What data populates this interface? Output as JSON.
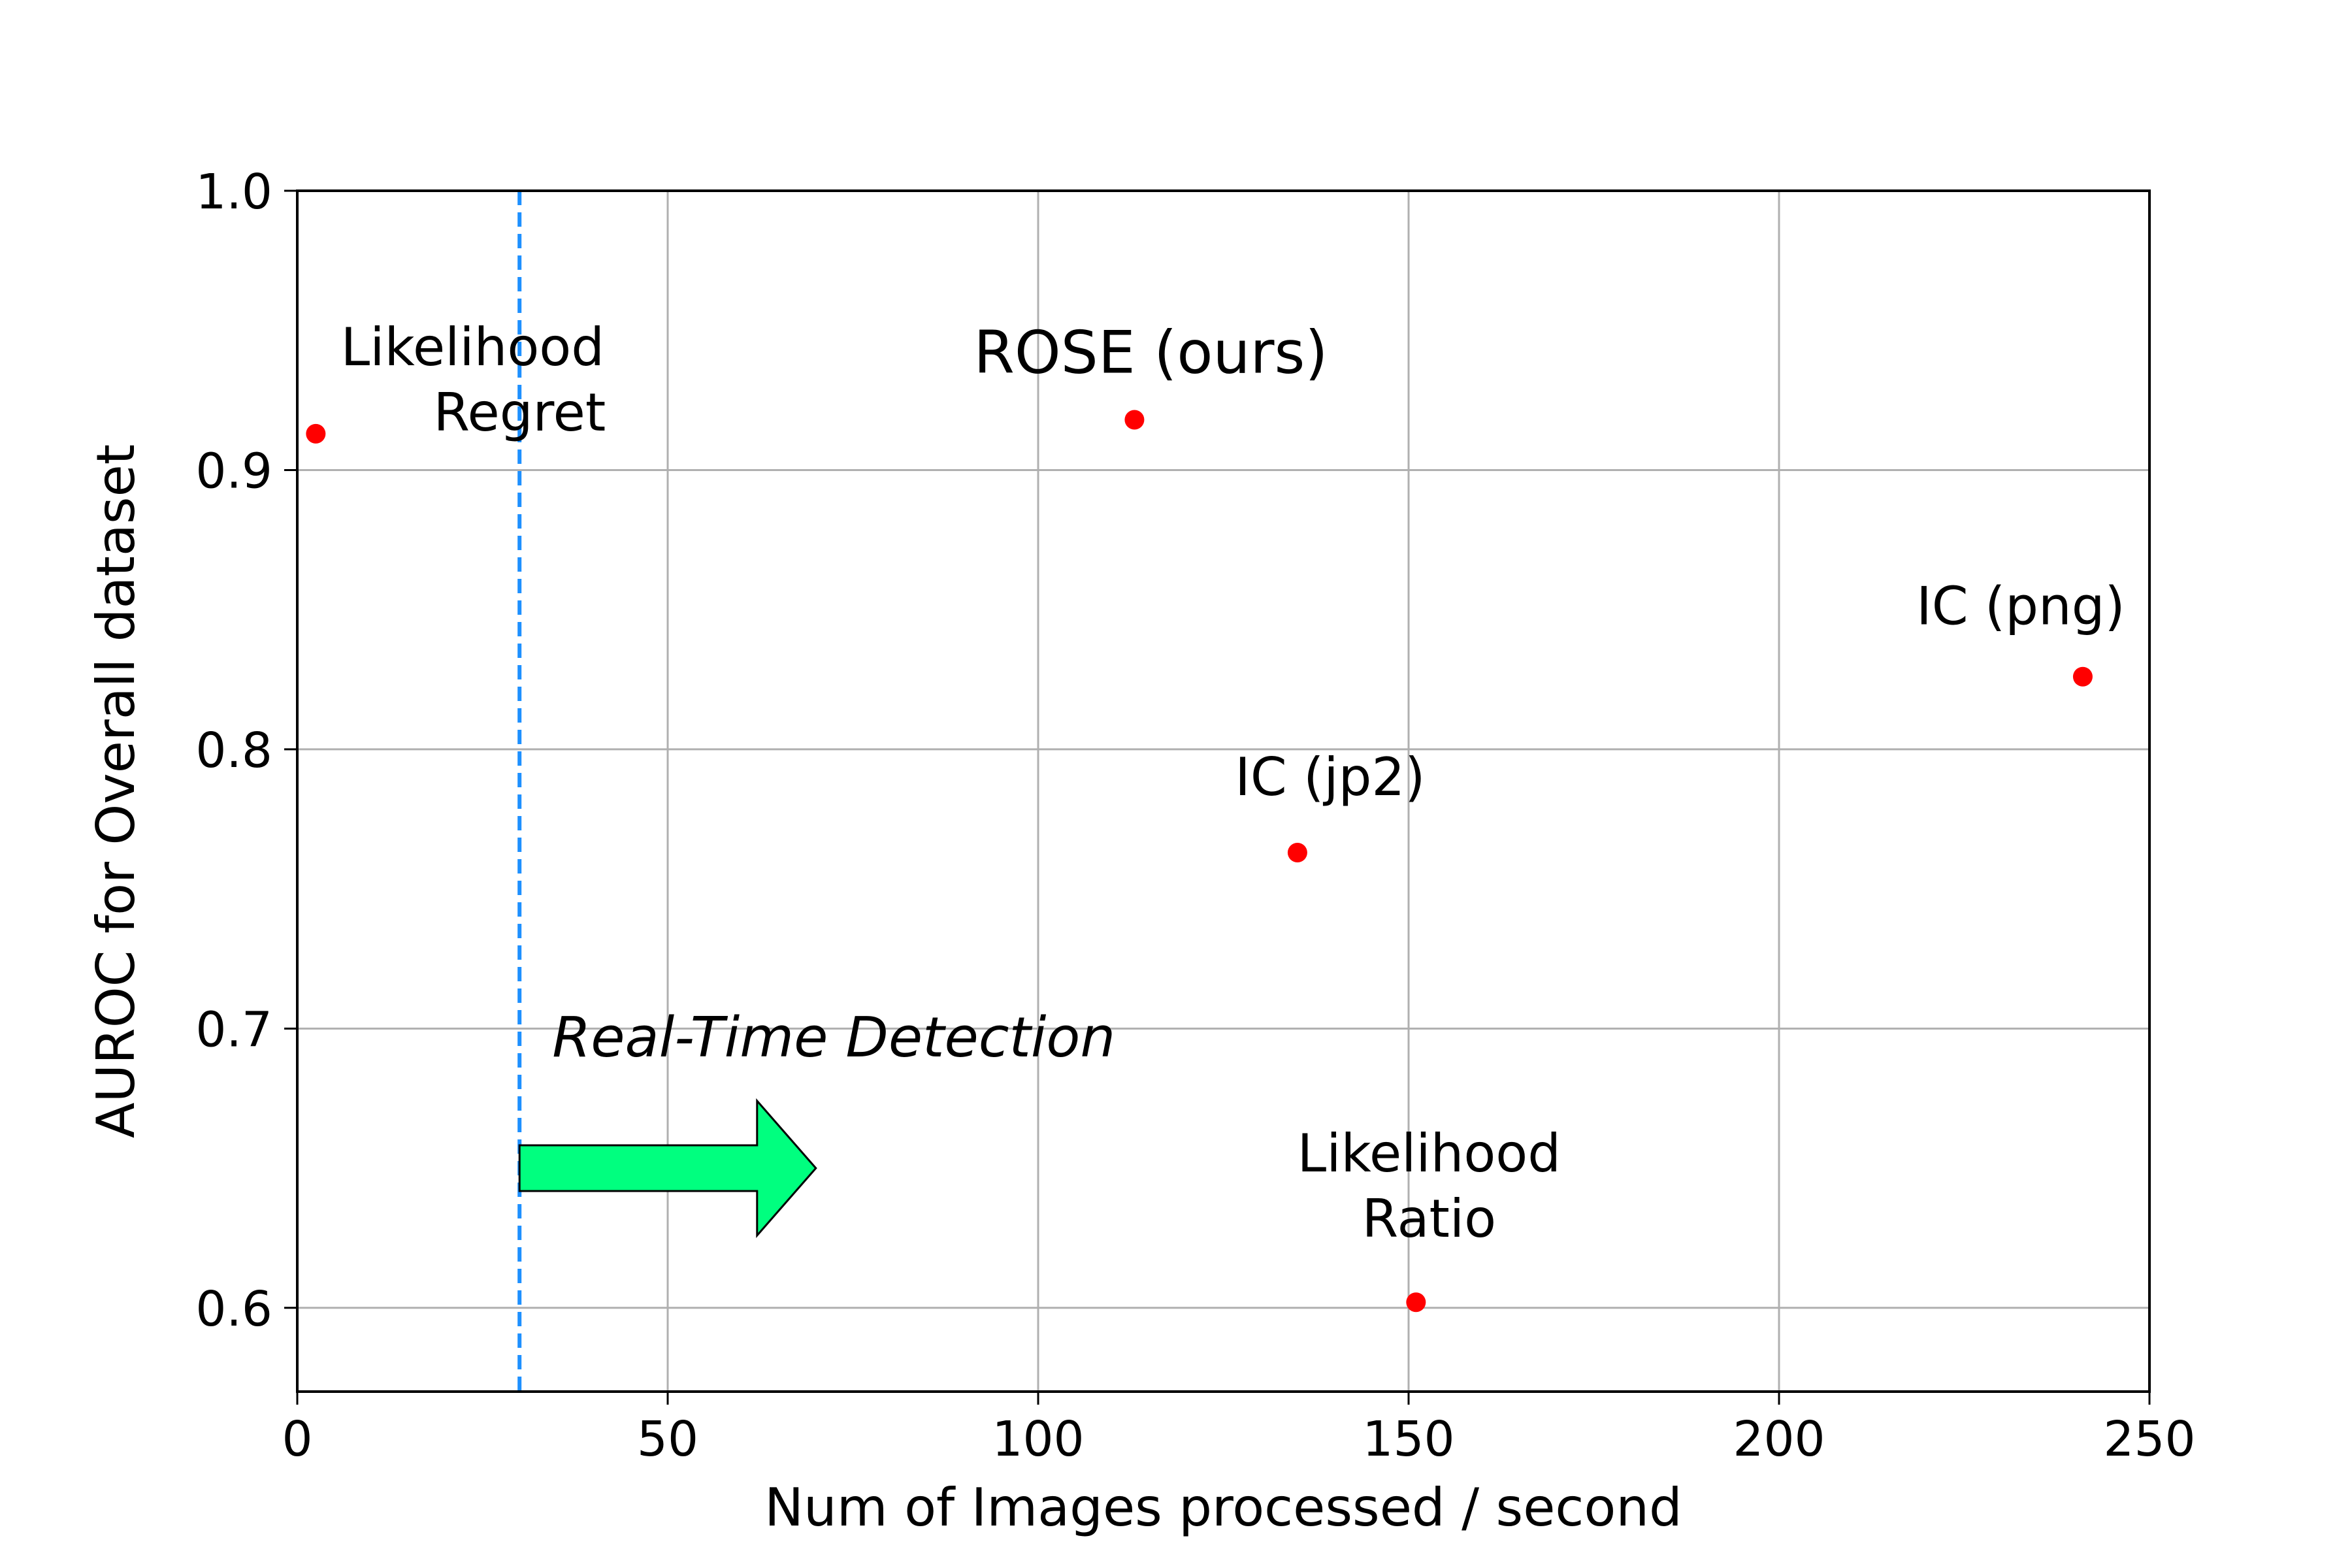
{
  "chart_data": {
    "type": "scatter",
    "title": "",
    "xlabel": "Num of Images processed / second",
    "ylabel": "AUROC for Overall dataset",
    "xlim": [
      0,
      250
    ],
    "ylim": [
      0.57,
      1.0
    ],
    "xticks": [
      0,
      50,
      100,
      150,
      200,
      250
    ],
    "xtick_labels": [
      "0",
      "50",
      "100",
      "150",
      "200",
      "250"
    ],
    "yticks": [
      0.6,
      0.7,
      0.8,
      0.9,
      1.0
    ],
    "ytick_labels": [
      "0.6",
      "0.7",
      "0.8",
      "0.9",
      "1.0"
    ],
    "grid": true,
    "points": [
      {
        "label_lines": [
          "Likelihood",
          "Regret"
        ],
        "x": 2.5,
        "y": 0.913
      },
      {
        "label_lines": [
          "ROSE (ours)"
        ],
        "x": 113,
        "y": 0.918
      },
      {
        "label_lines": [
          "IC (png)"
        ],
        "x": 241,
        "y": 0.826
      },
      {
        "label_lines": [
          "IC (jp2)"
        ],
        "x": 135,
        "y": 0.763
      },
      {
        "label_lines": [
          "Likelihood",
          "Ratio"
        ],
        "x": 151,
        "y": 0.602
      }
    ],
    "threshold_x": 30,
    "annotation": "Real-Time Detection",
    "arrow": {
      "from_x": 30,
      "to_x": 70,
      "y": 0.65
    },
    "colors": {
      "points": "#ff0000",
      "threshold_line": "#1e90ff",
      "arrow_fill": "#00ff7f",
      "grid": "#b0b0b0"
    }
  }
}
